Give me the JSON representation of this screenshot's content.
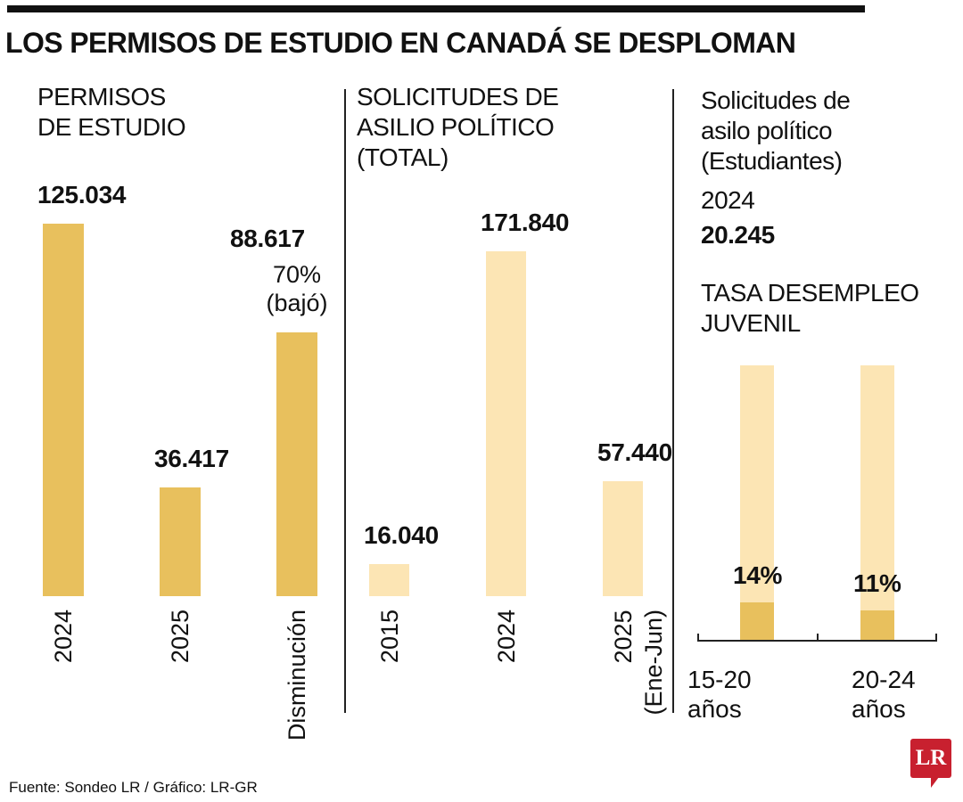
{
  "title": "LOS PERMISOS DE ESTUDIO EN CANADÁ SE DESPLOMAN",
  "colors": {
    "dark_bar": "#E8C05D",
    "light_bar": "#FCE5B4",
    "logo": "#C8202F"
  },
  "chart_data": [
    {
      "type": "bar",
      "title": "PERMISOS\nDE ESTUDIO",
      "categories": [
        "2024",
        "2025",
        "Disminución"
      ],
      "values": [
        125034,
        36417,
        88617
      ],
      "data_labels": [
        "125.034",
        "36.417",
        "88.617"
      ],
      "annotation": "70%\n(bajó)",
      "color": "dark"
    },
    {
      "type": "bar",
      "title": "SOLICITUDES DE\nASILIO POLÍTICO\n(TOTAL)",
      "categories": [
        "2015",
        "2024",
        "2025\n(Ene-Jun)"
      ],
      "values": [
        16040,
        171840,
        57440
      ],
      "data_labels": [
        "16.040",
        "171.840",
        "57.440"
      ],
      "color": "light"
    },
    {
      "type": "bar",
      "title": "TASA DESEMPLEO\nJUVENIL",
      "categories": [
        "15-20\naños",
        "20-24\naños"
      ],
      "values": [
        14,
        11
      ],
      "unit": "%",
      "ylim": [
        0,
        100
      ],
      "data_labels": [
        "14%",
        "11%"
      ],
      "color": "dark"
    }
  ],
  "students_asylum": {
    "label": "Solicitudes de\nasilo político\n(Estudiantes)",
    "year": "2024",
    "value": "20.245"
  },
  "footer": "Fuente: Sondeo LR / Gráfico: LR-GR",
  "logo_text": "LR"
}
